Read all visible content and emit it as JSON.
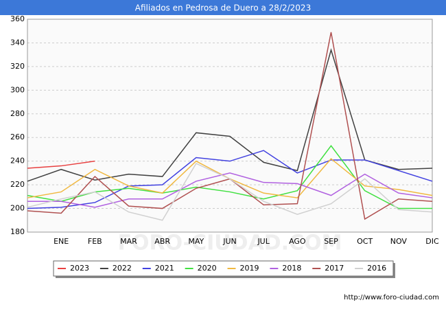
{
  "chart_data": {
    "type": "line",
    "title": "Afiliados en Pedrosa de Duero a 28/2/2023",
    "footer": "http://www.foro-ciudad.com",
    "watermark": "FORO-CIUDAD.COM",
    "categories": [
      null,
      "ENE",
      "FEB",
      "MAR",
      "ABR",
      "MAY",
      "JUN",
      "JUL",
      "AGO",
      "SEP",
      "OCT",
      "NOV",
      "DIC"
    ],
    "ylim": [
      180,
      360
    ],
    "yticks": [
      180,
      200,
      220,
      240,
      260,
      280,
      300,
      320,
      340,
      360
    ],
    "grid": true,
    "legend": "bottom",
    "series": [
      {
        "name": "2023",
        "color": "#e84040",
        "values": [
          234,
          236,
          240,
          null,
          null,
          null,
          null,
          null,
          null,
          null,
          null,
          null,
          null
        ]
      },
      {
        "name": "2022",
        "color": "#404040",
        "values": [
          223,
          233,
          224,
          229,
          227,
          264,
          261,
          239,
          232,
          334,
          241,
          233,
          234
        ]
      },
      {
        "name": "2021",
        "color": "#4040e0",
        "values": [
          200,
          201,
          205,
          219,
          220,
          243,
          240,
          249,
          230,
          241,
          241,
          232,
          223
        ]
      },
      {
        "name": "2020",
        "color": "#40e040",
        "values": [
          211,
          206,
          214,
          217,
          213,
          218,
          214,
          208,
          215,
          253,
          215,
          200,
          200
        ]
      },
      {
        "name": "2019",
        "color": "#f0b840",
        "values": [
          209,
          214,
          233,
          219,
          213,
          240,
          225,
          213,
          209,
          242,
          219,
          216,
          211
        ]
      },
      {
        "name": "2018",
        "color": "#b060e0",
        "values": [
          206,
          206,
          201,
          208,
          208,
          223,
          230,
          222,
          221,
          211,
          229,
          213,
          209
        ]
      },
      {
        "name": "2017",
        "color": "#b05050",
        "values": [
          198,
          196,
          227,
          202,
          200,
          217,
          225,
          203,
          204,
          349,
          191,
          208,
          206
        ]
      },
      {
        "name": "2016",
        "color": "#d0d0d0",
        "values": [
          201,
          208,
          214,
          197,
          190,
          238,
          225,
          206,
          195,
          204,
          225,
          199,
          197
        ]
      }
    ]
  }
}
